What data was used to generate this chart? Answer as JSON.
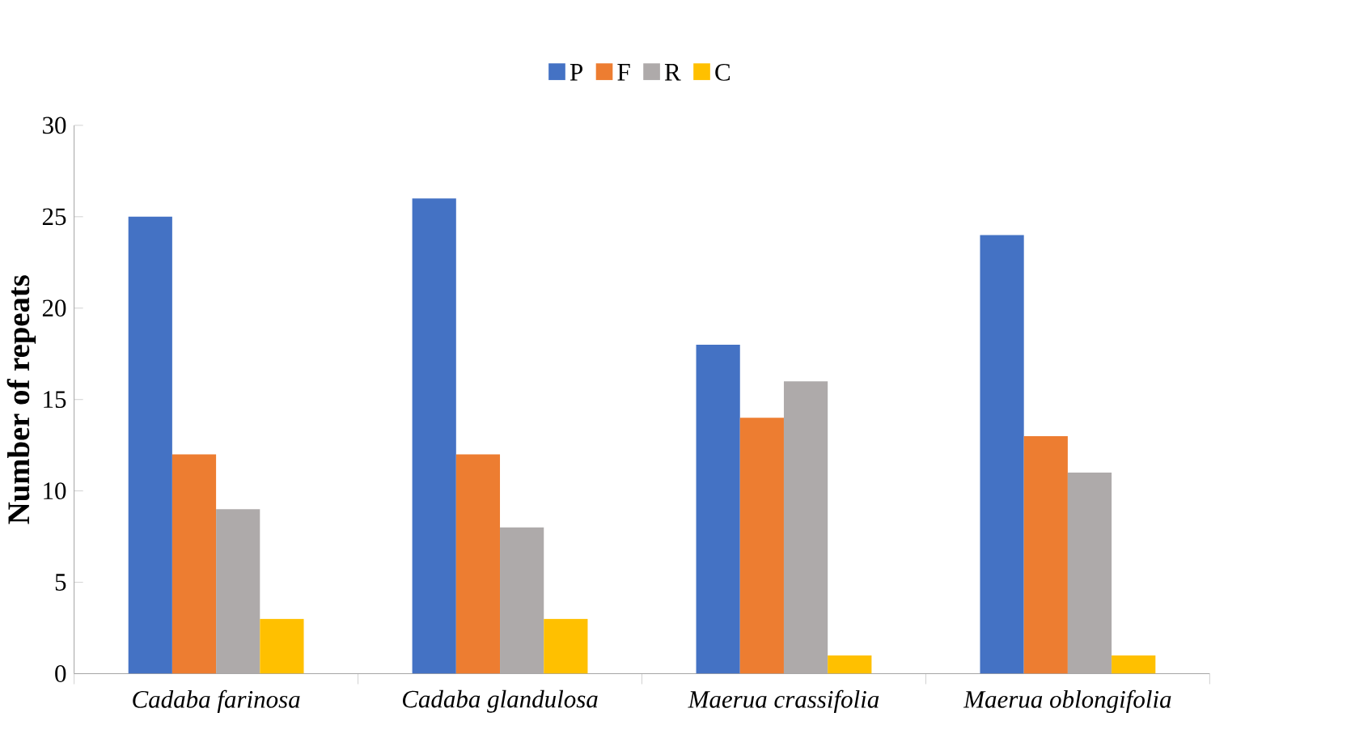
{
  "chart_data": {
    "type": "bar",
    "ylabel": "Number of repeats",
    "categories": [
      "Cadaba farinosa",
      "Cadaba glandulosa",
      "Maerua crassifolia",
      "Maerua oblongifolia"
    ],
    "series": [
      {
        "name": "P",
        "color": "#4472c4",
        "values": [
          25,
          26,
          18,
          24
        ]
      },
      {
        "name": "F",
        "color": "#ed7d31",
        "values": [
          12,
          12,
          14,
          13
        ]
      },
      {
        "name": "R",
        "color": "#aeaaaa",
        "values": [
          9,
          8,
          16,
          11
        ]
      },
      {
        "name": "C",
        "color": "#ffc000",
        "values": [
          3,
          3,
          1,
          1
        ]
      }
    ],
    "ylim": [
      0,
      30
    ],
    "yticks": [
      0,
      5,
      10,
      15,
      20,
      25,
      30
    ],
    "legend": "top"
  }
}
